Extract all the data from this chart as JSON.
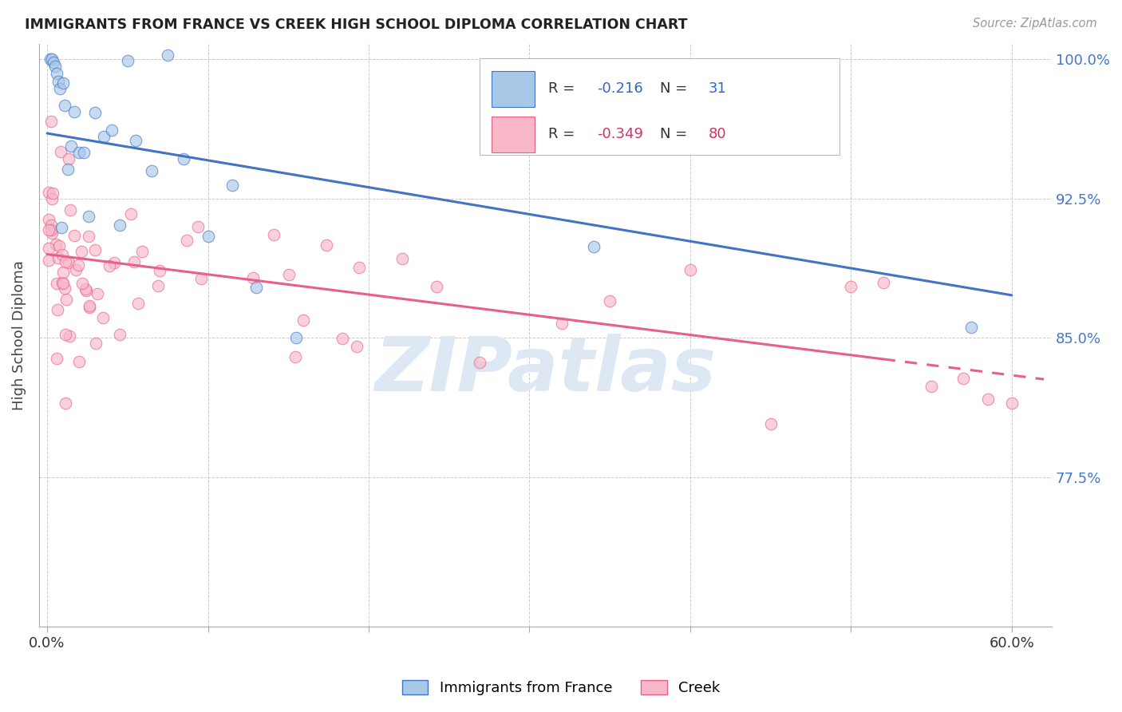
{
  "title": "IMMIGRANTS FROM FRANCE VS CREEK HIGH SCHOOL DIPLOMA CORRELATION CHART",
  "source": "Source: ZipAtlas.com",
  "ylabel": "High School Diploma",
  "legend_label1": "Immigrants from France",
  "legend_label2": "Creek",
  "R1": -0.216,
  "N1": 31,
  "R2": -0.349,
  "N2": 80,
  "xlim": [
    -0.005,
    0.625
  ],
  "ylim": [
    0.695,
    1.008
  ],
  "yticks": [
    0.775,
    0.85,
    0.925,
    1.0
  ],
  "ytick_labels": [
    "77.5%",
    "85.0%",
    "92.5%",
    "100.0%"
  ],
  "xticks": [
    0.0,
    0.1,
    0.2,
    0.3,
    0.4,
    0.5,
    0.6
  ],
  "xtick_labels": [
    "0.0%",
    "",
    "",
    "",
    "",
    "",
    "60.0%"
  ],
  "color_blue": "#a8c8e8",
  "color_pink": "#f8b8c8",
  "line_blue": "#4472c4",
  "line_pink": "#e8608a",
  "blue_line_y0": 0.96,
  "blue_line_y1": 0.873,
  "pink_line_y0": 0.895,
  "pink_line_y1_solid": 0.845,
  "pink_line_x_solid_end": 0.52,
  "pink_line_y1_dash": 0.83
}
